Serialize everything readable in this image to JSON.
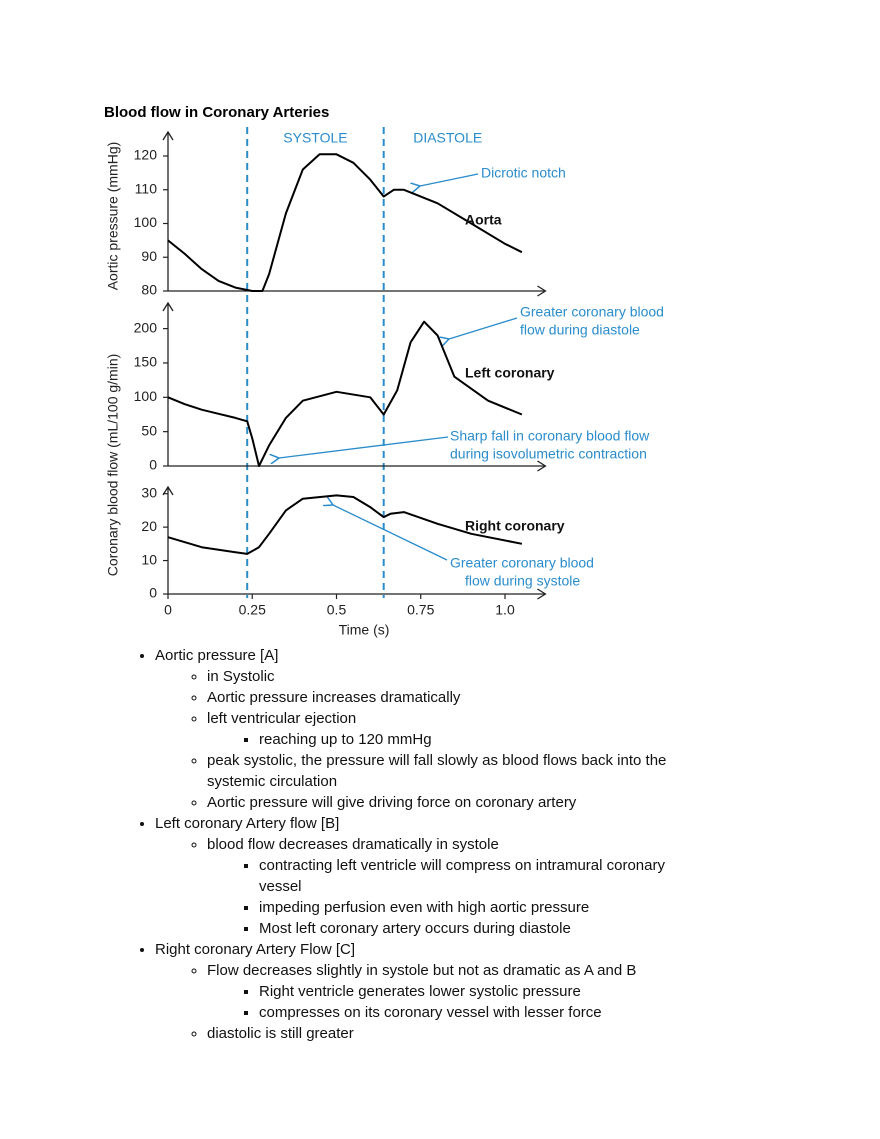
{
  "title": "Blood flow in Coronary Arteries",
  "chart_data": [
    {
      "type": "line",
      "ylabel": "Aortic pressure (mmHg)",
      "xlim": [
        0,
        1.12
      ],
      "ylim": [
        80,
        124
      ],
      "yticks": [
        80,
        90,
        100,
        110,
        120
      ],
      "phases": [
        {
          "name": "SYSTOLE",
          "start": 0.235,
          "end": 0.64
        },
        {
          "name": "DIASTOLE",
          "start": 0.64,
          "end": 1.02
        }
      ],
      "x": [
        0,
        0.05,
        0.1,
        0.15,
        0.2,
        0.25,
        0.28,
        0.3,
        0.35,
        0.4,
        0.45,
        0.5,
        0.55,
        0.6,
        0.64,
        0.67,
        0.7,
        0.8,
        0.9,
        1.0,
        1.05
      ],
      "series": [
        {
          "name": "Aorta",
          "color": "#000000",
          "values": [
            95,
            91,
            86.5,
            83,
            81,
            80,
            80,
            85,
            103,
            116,
            120.5,
            120.5,
            118,
            113,
            108,
            110,
            110,
            106,
            100,
            94,
            91.5
          ]
        }
      ],
      "annotations": [
        {
          "lines": [
            "Dicrotic notch"
          ]
        }
      ]
    },
    {
      "type": "line",
      "ylabel": "Coronary blood flow (mL/100 g/min)",
      "xlim": [
        0,
        1.12
      ],
      "ylim": [
        0,
        230
      ],
      "yticks": [
        0,
        50,
        100,
        150,
        200
      ],
      "x": [
        0,
        0.05,
        0.1,
        0.15,
        0.2,
        0.235,
        0.25,
        0.27,
        0.3,
        0.35,
        0.4,
        0.5,
        0.6,
        0.64,
        0.68,
        0.72,
        0.76,
        0.8,
        0.85,
        0.95,
        1.05
      ],
      "series": [
        {
          "name": "Left coronary",
          "color": "#000000",
          "values": [
            100,
            90,
            82,
            76,
            70,
            65,
            40,
            0,
            30,
            70,
            95,
            108,
            100,
            75,
            110,
            180,
            210,
            190,
            130,
            95,
            75
          ]
        }
      ],
      "annotations": [
        {
          "lines": [
            "Greater coronary blood",
            "flow during diastole"
          ]
        },
        {
          "lines": [
            "Sharp fall in coronary blood flow",
            "during isovolumetric contraction"
          ]
        }
      ]
    },
    {
      "type": "line",
      "xlim": [
        0,
        1.12
      ],
      "ylim": [
        0,
        32
      ],
      "yticks": [
        0,
        10,
        20,
        30
      ],
      "xticks": [
        0,
        0.25,
        0.5,
        0.75,
        {
          "value": 1.0,
          "label": "1.0"
        }
      ],
      "xlabel": "Time (s)",
      "x": [
        0,
        0.1,
        0.2,
        0.235,
        0.27,
        0.3,
        0.35,
        0.4,
        0.5,
        0.55,
        0.6,
        0.64,
        0.66,
        0.7,
        0.8,
        0.9,
        1.05
      ],
      "series": [
        {
          "name": "Right coronary",
          "color": "#000000",
          "values": [
            17,
            14,
            12.5,
            12,
            14,
            18,
            25,
            28.5,
            29.5,
            29,
            26,
            23,
            24,
            24.5,
            21,
            18,
            15
          ]
        }
      ],
      "annotations": [
        {
          "lines": [
            "Greater coronary blood",
            "flow during systole"
          ]
        }
      ]
    }
  ],
  "outline": [
    {
      "text": "Aortic pressure [A]",
      "children": [
        {
          "text": "in Systolic"
        },
        {
          "text": "Aortic pressure increases dramatically"
        },
        {
          "text": "left ventricular ejection",
          "children": [
            {
              "text": "reaching up to 120 mmHg"
            }
          ]
        },
        {
          "text": "peak systolic, the pressure will fall slowly as blood flows back into the systemic circulation"
        },
        {
          "text": "Aortic pressure will give driving force on coronary artery"
        }
      ]
    },
    {
      "text": "Left coronary Artery flow [B]",
      "children": [
        {
          "text": "blood flow decreases dramatically in systole",
          "children": [
            {
              "text": "contracting left ventricle will compress on intramural coronary vessel"
            },
            {
              "text": "impeding perfusion even with high aortic pressure"
            },
            {
              "text": "Most left coronary artery occurs during diastole"
            }
          ]
        }
      ]
    },
    {
      "text": "Right coronary Artery Flow [C]",
      "children": [
        {
          "text": "Flow decreases slightly in systole but not as dramatic as A and B",
          "children": [
            {
              "text": "Right ventricle generates lower systolic pressure"
            },
            {
              "text": "compresses on its coronary vessel with lesser force"
            }
          ]
        },
        {
          "text": "diastolic is still greater"
        }
      ]
    }
  ]
}
